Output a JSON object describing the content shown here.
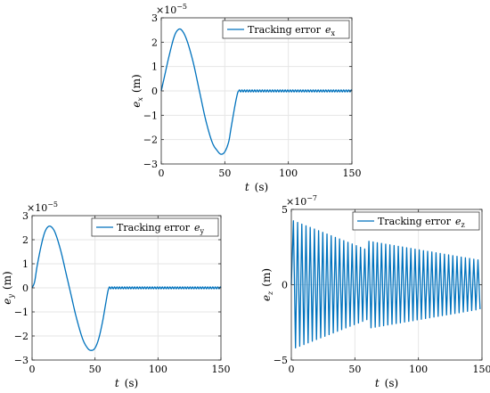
{
  "figure": {
    "line_color": "#0072bd",
    "axes_color": "#262626",
    "grid_color": "#e6e6e6"
  },
  "chart_data": [
    {
      "id": "ex",
      "type": "line",
      "title": "",
      "xlabel": "t",
      "xunit": "(s)",
      "ylabel": "e",
      "ylabel_sub": "x",
      "yunit": "(m)",
      "exponent": {
        "base": "×10",
        "power": "−5"
      },
      "xlim": [
        0,
        150
      ],
      "ylim": [
        -3,
        3
      ],
      "xticks": [
        0,
        50,
        100,
        150
      ],
      "yticks": [
        -3,
        -2,
        -1,
        0,
        1,
        2,
        3
      ],
      "grid": true,
      "legend": {
        "position": "top-right",
        "text": "Tracking error",
        "symbol": "e",
        "symbol_sub": "x"
      },
      "series": [
        {
          "style": "smooth",
          "x": [
            0,
            3,
            6,
            10,
            13,
            16,
            20,
            25,
            30,
            35,
            40,
            44,
            47,
            50,
            53,
            55,
            58,
            60,
            61
          ],
          "y": [
            0,
            0.7,
            1.4,
            2.2,
            2.5,
            2.5,
            2.1,
            1.2,
            0,
            -1.2,
            -2.1,
            -2.45,
            -2.6,
            -2.5,
            -2.1,
            -1.5,
            -0.6,
            -0.1,
            0
          ]
        },
        {
          "style": "osc",
          "x_start": 61,
          "x_end": 150,
          "amplitude": 0.04,
          "period": 2.0
        }
      ]
    },
    {
      "id": "ey",
      "type": "line",
      "title": "",
      "xlabel": "t",
      "xunit": "(s)",
      "ylabel": "e",
      "ylabel_sub": "y",
      "yunit": "(m)",
      "exponent": {
        "base": "×10",
        "power": "−5"
      },
      "xlim": [
        0,
        150
      ],
      "ylim": [
        -3,
        3
      ],
      "xticks": [
        0,
        50,
        100,
        150
      ],
      "yticks": [
        -3,
        -2,
        -1,
        0,
        1,
        2,
        3
      ],
      "grid": true,
      "legend": {
        "position": "top-right",
        "text": "Tracking error",
        "symbol": "e",
        "symbol_sub": "y"
      },
      "series": [
        {
          "style": "smooth",
          "x": [
            0,
            2,
            4,
            7,
            10,
            13,
            16,
            19,
            23,
            27,
            31,
            35,
            40,
            44,
            47,
            50,
            53,
            56,
            58,
            60,
            61
          ],
          "y": [
            0,
            0.25,
            0.9,
            1.7,
            2.3,
            2.55,
            2.5,
            2.2,
            1.5,
            0.6,
            -0.3,
            -1.2,
            -2.1,
            -2.5,
            -2.6,
            -2.5,
            -2.1,
            -1.4,
            -0.8,
            -0.2,
            0
          ]
        },
        {
          "style": "osc",
          "x_start": 61,
          "x_end": 150,
          "amplitude": 0.04,
          "period": 2.0
        }
      ]
    },
    {
      "id": "ez",
      "type": "line",
      "title": "",
      "xlabel": "t",
      "xunit": "(s)",
      "ylabel": "e",
      "ylabel_sub": "z",
      "yunit": "(m)",
      "exponent": {
        "base": "×10",
        "power": "−7"
      },
      "xlim": [
        0,
        150
      ],
      "ylim": [
        -5,
        5
      ],
      "xticks": [
        0,
        50,
        100,
        150
      ],
      "yticks": [
        -5,
        0,
        5
      ],
      "grid": true,
      "legend": {
        "position": "top-right",
        "text": "Tracking error",
        "symbol": "e",
        "symbol_sub": "z"
      },
      "series": [
        {
          "style": "decay_osc",
          "x_start": 0,
          "x_end": 150,
          "period": 3.3,
          "segments": [
            {
              "x_start": 0,
              "x_end": 60,
              "amp_start": 4.3,
              "amp_end": 2.3
            },
            {
              "x_start": 60,
              "x_end": 150,
              "amp_start": 2.9,
              "amp_end": 1.6
            }
          ]
        }
      ]
    }
  ]
}
